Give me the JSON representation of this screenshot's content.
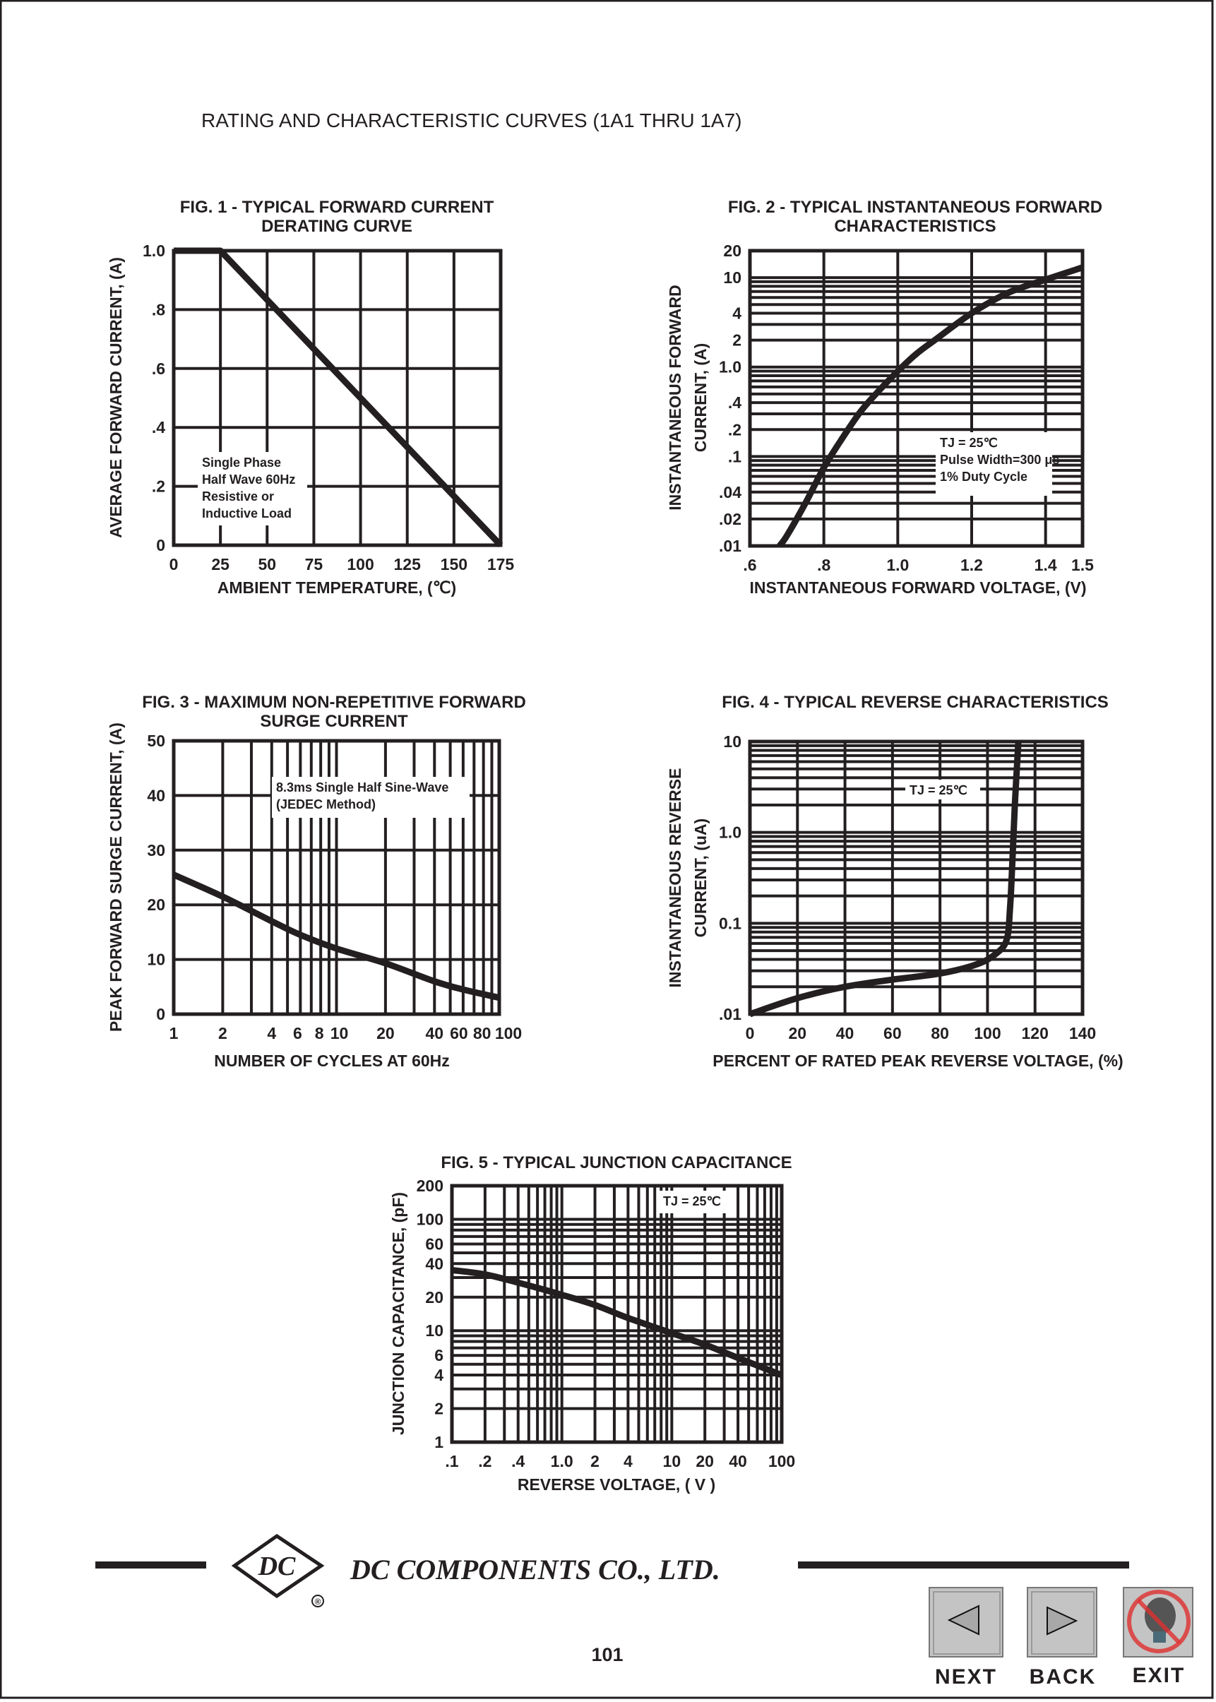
{
  "page_title": "RATING AND CHARACTERISTIC CURVES (1A1 THRU 1A7)",
  "footer": {
    "company": "DC COMPONENTS CO., LTD.",
    "logo_text": "DC",
    "registered": "®",
    "page_number": "101"
  },
  "nav": {
    "next_label": "NEXT",
    "back_label": "BACK",
    "exit_label": "EXIT",
    "next_icon": "left-triangle-icon",
    "back_icon": "right-triangle-icon",
    "exit_icon": "no-lightbulb-icon"
  },
  "colors": {
    "ink": "#231f20",
    "button_gray": "#c4c4c4",
    "exit_red": "#e03030"
  },
  "chart_data": [
    {
      "type": "line",
      "title": [
        "FIG. 1 - TYPICAL FORWARD CURRENT",
        "DERATING CURVE"
      ],
      "xlabel": "AMBIENT TEMPERATURE, (℃)",
      "ylabel": [
        "AVERAGE FORWARD CURRENT, (A)"
      ],
      "x_scale": "linear",
      "y_scale": "linear",
      "xlim": [
        0,
        175
      ],
      "ylim": [
        0,
        1.0
      ],
      "grid": true,
      "xticks": [
        {
          "v": 0,
          "label": "0"
        },
        {
          "v": 25,
          "label": "25"
        },
        {
          "v": 50,
          "label": "50"
        },
        {
          "v": 75,
          "label": "75"
        },
        {
          "v": 100,
          "label": "100"
        },
        {
          "v": 125,
          "label": "125"
        },
        {
          "v": 150,
          "label": "150"
        },
        {
          "v": 175,
          "label": "175"
        }
      ],
      "yticks": [
        {
          "v": 0,
          "label": "0"
        },
        {
          "v": 0.2,
          "label": ".2"
        },
        {
          "v": 0.4,
          "label": ".4"
        },
        {
          "v": 0.6,
          "label": ".6"
        },
        {
          "v": 0.8,
          "label": ".8"
        },
        {
          "v": 1.0,
          "label": "1.0"
        }
      ],
      "annotation": [
        "Single Phase",
        "Half Wave 60Hz",
        "Resistive or",
        "Inductive Load"
      ],
      "series": [
        {
          "x": [
            0,
            25,
            175
          ],
          "y": [
            1.0,
            1.0,
            0
          ]
        }
      ]
    },
    {
      "type": "line",
      "title": [
        "FIG. 2 - TYPICAL INSTANTANEOUS FORWARD",
        "CHARACTERISTICS"
      ],
      "xlabel": "INSTANTANEOUS FORWARD VOLTAGE, (V)",
      "ylabel": [
        "INSTANTANEOUS FORWARD",
        "CURRENT, (A)"
      ],
      "x_scale": "linear",
      "y_scale": "log",
      "xlim": [
        0.6,
        1.5
      ],
      "ylim": [
        0.01,
        20
      ],
      "grid": true,
      "xticks": [
        {
          "v": 0.6,
          "label": ".6"
        },
        {
          "v": 0.8,
          "label": ".8"
        },
        {
          "v": 1.0,
          "label": "1.0"
        },
        {
          "v": 1.2,
          "label": "1.2"
        },
        {
          "v": 1.4,
          "label": "1.4"
        },
        {
          "v": 1.5,
          "label": "1.5"
        }
      ],
      "yticks": [
        {
          "v": 0.01,
          "label": ".01"
        },
        {
          "v": 0.02,
          "label": ".02"
        },
        {
          "v": 0.04,
          "label": ".04"
        },
        {
          "v": 0.1,
          "label": ".1"
        },
        {
          "v": 0.2,
          "label": ".2"
        },
        {
          "v": 0.4,
          "label": ".4"
        },
        {
          "v": 1,
          "label": "1.0"
        },
        {
          "v": 2,
          "label": "2"
        },
        {
          "v": 4,
          "label": "4"
        },
        {
          "v": 10,
          "label": "10"
        },
        {
          "v": 20,
          "label": "20"
        }
      ],
      "annotation": [
        "TJ = 25℃",
        "Pulse Width=300 μs",
        "1% Duty Cycle"
      ],
      "series": [
        {
          "x": [
            0.68,
            0.7,
            0.75,
            0.8,
            0.85,
            0.9,
            0.95,
            1.0,
            1.05,
            1.1,
            1.2,
            1.3,
            1.4,
            1.5
          ],
          "y": [
            0.01,
            0.013,
            0.03,
            0.075,
            0.16,
            0.32,
            0.55,
            0.9,
            1.4,
            2.0,
            4.0,
            6.8,
            9.5,
            13
          ]
        }
      ]
    },
    {
      "type": "line",
      "title": [
        "FIG. 3 - MAXIMUM NON-REPETITIVE FORWARD",
        "SURGE CURRENT"
      ],
      "xlabel": "NUMBER OF CYCLES AT 60Hz",
      "ylabel": [
        "PEAK FORWARD SURGE CURRENT, (A)"
      ],
      "x_scale": "log",
      "y_scale": "linear",
      "xlim": [
        1,
        100
      ],
      "ylim": [
        0,
        50
      ],
      "grid": true,
      "xticks": [
        {
          "v": 1,
          "label": "1"
        },
        {
          "v": 2,
          "label": "2"
        },
        {
          "v": 4,
          "label": "4"
        },
        {
          "v": 6,
          "label": "6"
        },
        {
          "v": 8,
          "label": "8"
        },
        {
          "v": 10,
          "label": "10"
        },
        {
          "v": 20,
          "label": "20"
        },
        {
          "v": 40,
          "label": "40"
        },
        {
          "v": 60,
          "label": "60"
        },
        {
          "v": 80,
          "label": "80"
        },
        {
          "v": 100,
          "label": "100"
        }
      ],
      "yticks": [
        {
          "v": 0,
          "label": "0"
        },
        {
          "v": 10,
          "label": "10"
        },
        {
          "v": 20,
          "label": "20"
        },
        {
          "v": 30,
          "label": "30"
        },
        {
          "v": 40,
          "label": "40"
        },
        {
          "v": 50,
          "label": "50"
        }
      ],
      "annotation": [
        "8.3ms Single Half Sine-Wave",
        "(JEDEC Method)"
      ],
      "series": [
        {
          "x": [
            1,
            2,
            4,
            6,
            10,
            20,
            40,
            60,
            100
          ],
          "y": [
            25.5,
            21.5,
            17,
            14.5,
            12,
            9.3,
            6,
            4.5,
            3
          ]
        }
      ]
    },
    {
      "type": "line",
      "title": [
        "FIG. 4 - TYPICAL REVERSE CHARACTERISTICS"
      ],
      "xlabel": "PERCENT OF RATED PEAK REVERSE VOLTAGE, (%)",
      "ylabel": [
        "INSTANTANEOUS REVERSE",
        "CURRENT, (uA)"
      ],
      "x_scale": "linear",
      "y_scale": "log",
      "xlim": [
        0,
        140
      ],
      "ylim": [
        0.01,
        10
      ],
      "grid": true,
      "xticks": [
        {
          "v": 0,
          "label": "0"
        },
        {
          "v": 20,
          "label": "20"
        },
        {
          "v": 40,
          "label": "40"
        },
        {
          "v": 60,
          "label": "60"
        },
        {
          "v": 80,
          "label": "80"
        },
        {
          "v": 100,
          "label": "100"
        },
        {
          "v": 120,
          "label": "120"
        },
        {
          "v": 140,
          "label": "140"
        }
      ],
      "yticks": [
        {
          "v": 0.01,
          "label": ".01"
        },
        {
          "v": 0.1,
          "label": "0.1"
        },
        {
          "v": 1,
          "label": "1.0"
        },
        {
          "v": 10,
          "label": "10"
        }
      ],
      "annotation": [
        "TJ = 25℃"
      ],
      "series": [
        {
          "x": [
            0,
            20,
            40,
            60,
            80,
            95,
            103,
            108,
            109.5,
            110.5,
            111.5,
            113
          ],
          "y": [
            0.01,
            0.015,
            0.02,
            0.024,
            0.028,
            0.035,
            0.045,
            0.065,
            0.15,
            0.5,
            2,
            10
          ]
        }
      ]
    },
    {
      "type": "line",
      "title": [
        "FIG. 5 - TYPICAL JUNCTION CAPACITANCE"
      ],
      "xlabel": "REVERSE VOLTAGE, ( V )",
      "ylabel": [
        "JUNCTION CAPACITANCE, (pF)"
      ],
      "x_scale": "log",
      "y_scale": "log",
      "xlim": [
        0.1,
        100
      ],
      "ylim": [
        1,
        200
      ],
      "grid": true,
      "xticks": [
        {
          "v": 0.1,
          "label": ".1"
        },
        {
          "v": 0.2,
          "label": ".2"
        },
        {
          "v": 0.4,
          "label": ".4"
        },
        {
          "v": 1,
          "label": "1.0"
        },
        {
          "v": 2,
          "label": "2"
        },
        {
          "v": 4,
          "label": "4"
        },
        {
          "v": 10,
          "label": "10"
        },
        {
          "v": 20,
          "label": "20"
        },
        {
          "v": 40,
          "label": "40"
        },
        {
          "v": 100,
          "label": "100"
        }
      ],
      "yticks": [
        {
          "v": 1,
          "label": "1"
        },
        {
          "v": 2,
          "label": "2"
        },
        {
          "v": 4,
          "label": "4"
        },
        {
          "v": 6,
          "label": "6"
        },
        {
          "v": 10,
          "label": "10"
        },
        {
          "v": 20,
          "label": "20"
        },
        {
          "v": 40,
          "label": "40"
        },
        {
          "v": 60,
          "label": "60"
        },
        {
          "v": 100,
          "label": "100"
        },
        {
          "v": 200,
          "label": "200"
        }
      ],
      "annotation": [
        "TJ = 25℃"
      ],
      "series": [
        {
          "x": [
            0.1,
            0.2,
            0.4,
            1,
            2,
            4,
            10,
            20,
            40,
            100
          ],
          "y": [
            35,
            32,
            27,
            21,
            17,
            13,
            9.5,
            7.5,
            5.7,
            4
          ]
        }
      ]
    }
  ]
}
